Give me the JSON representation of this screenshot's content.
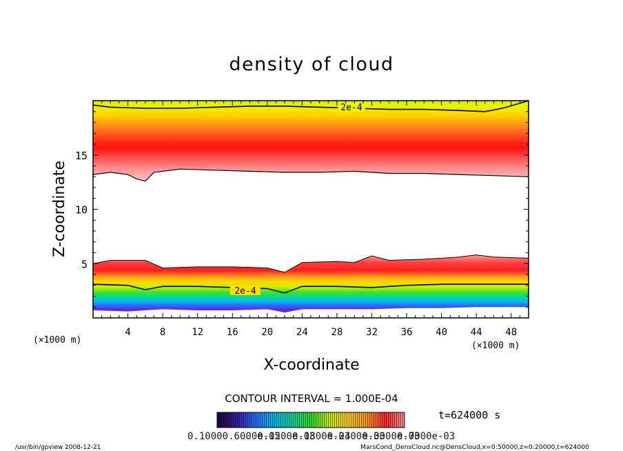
{
  "chart_data": {
    "type": "heatmap",
    "title": "density of cloud",
    "xlabel": "X-coordinate",
    "ylabel": "Z-coordinate",
    "x_unit": "(×1000 m)",
    "y_unit": "(×1000 m)",
    "xlim": [
      0,
      50
    ],
    "ylim": [
      0,
      20
    ],
    "x_ticks": [
      4,
      8,
      12,
      16,
      20,
      24,
      28,
      32,
      36,
      40,
      44,
      48
    ],
    "y_ticks": [
      5,
      10,
      15
    ],
    "contour_interval_text": "CONTOUR INTERVAL = 1.000E-04",
    "contour_label": "2e-4",
    "time_label": "t=624000 s",
    "colorbar_labels": [
      "0.1000",
      "0.6000e-05",
      "0.1200e-03",
      "0.1800e-03",
      "0.2400e-03",
      "0.3000e-03",
      "0.7000e-03"
    ],
    "grid": false,
    "legend": "colorbar-bottom",
    "layers": [
      {
        "name": "upper cloud",
        "z_base": 13.4,
        "z_peak": 15.5,
        "z_top": 20.0,
        "peak_density": 0.0007
      },
      {
        "name": "lower cloud",
        "z_base": 0.6,
        "z_peak": 4.2,
        "z_top": 5.3,
        "peak_density": 0.0007
      }
    ],
    "contours": [
      {
        "level": 0.0002,
        "x": [
          0,
          2,
          6,
          10,
          14,
          18,
          22,
          26,
          30,
          34,
          38,
          42,
          45,
          47,
          50
        ],
        "z": [
          19.6,
          19.4,
          19.3,
          19.3,
          19.4,
          19.5,
          19.5,
          19.4,
          19.3,
          19.2,
          19.2,
          19.1,
          19.0,
          19.3,
          20.0
        ]
      },
      {
        "level": 0.0002,
        "x": [
          0,
          4,
          6,
          8,
          12,
          16,
          20,
          22,
          24,
          28,
          32,
          36,
          40,
          44,
          48,
          50
        ],
        "z": [
          3.1,
          3.0,
          2.6,
          2.9,
          2.9,
          2.8,
          2.7,
          2.3,
          2.9,
          2.9,
          2.8,
          3.0,
          3.1,
          3.1,
          3.1,
          3.1
        ]
      }
    ],
    "upper_base_boundary": {
      "x": [
        0,
        2,
        4,
        5,
        6,
        7,
        10,
        14,
        18,
        22,
        26,
        30,
        34,
        38,
        42,
        46,
        50
      ],
      "z": [
        13.2,
        13.4,
        13.2,
        12.8,
        12.6,
        13.4,
        13.7,
        13.6,
        13.5,
        13.4,
        13.4,
        13.5,
        13.3,
        13.3,
        13.2,
        13.1,
        13.0
      ]
    },
    "lower_top_boundary": {
      "x": [
        0,
        2,
        4,
        6,
        8,
        12,
        16,
        20,
        22,
        24,
        28,
        30,
        32,
        34,
        38,
        42,
        44,
        46,
        50
      ],
      "z": [
        5.0,
        5.3,
        5.3,
        5.3,
        4.6,
        4.7,
        4.7,
        4.6,
        4.2,
        5.1,
        5.2,
        5.1,
        5.7,
        5.3,
        5.4,
        5.6,
        5.8,
        5.6,
        5.5
      ]
    },
    "lower_bottom_boundary": {
      "x": [
        0,
        4,
        8,
        12,
        16,
        20,
        22,
        24,
        28,
        32,
        36,
        40,
        44,
        48,
        50
      ],
      "z": [
        0.7,
        0.6,
        0.8,
        0.7,
        0.7,
        0.8,
        0.5,
        0.8,
        0.8,
        0.8,
        0.9,
        0.9,
        1.0,
        1.0,
        1.0
      ]
    }
  },
  "footer": {
    "left": "/usr/bin/gpview  2008-12-21",
    "right": "MarsCond_DensCloud.nc@DensCloud,x=0:50000,z=0:20000,t=624000"
  }
}
